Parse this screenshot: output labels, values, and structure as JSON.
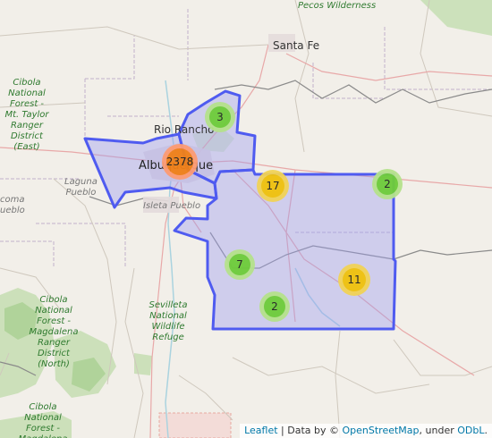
{
  "place_labels": [
    {
      "id": "santa-fe",
      "text": "Santa Fe",
      "style": "city"
    },
    {
      "id": "rio-rancho",
      "text": "Rio Rancho",
      "style": "city"
    },
    {
      "id": "albuquerque",
      "text": "Albuquerque",
      "style": "city-lg"
    },
    {
      "id": "laguna-pueblo",
      "text": "Laguna\nPueblo",
      "style": "pueblo"
    },
    {
      "id": "isleta-pueblo",
      "text": "Isleta Pueblo",
      "style": "pueblo"
    },
    {
      "id": "acoma-pueblo",
      "text": "coma\nueblo",
      "style": "pueblo"
    },
    {
      "id": "pecos-wilderness",
      "text": "Pecos Wilderness",
      "style": "green"
    },
    {
      "id": "cibola-east",
      "text": "Cibola\nNational\nForest -\nMt. Taylor\nRanger\nDistrict\n(East)",
      "style": "green"
    },
    {
      "id": "cibola-north",
      "text": "Cibola\nNational\nForest -\nMagdalena\nRanger\nDistrict\n(North)",
      "style": "green"
    },
    {
      "id": "sevilleta",
      "text": "Sevilleta\nNational\nWildlife\nRefuge",
      "style": "green"
    },
    {
      "id": "cibola-south",
      "text": "Cibola\nNational\nForest -\nMagdalena",
      "style": "green"
    }
  ],
  "clusters": [
    {
      "id": "c-3",
      "count": "3",
      "size": "small"
    },
    {
      "id": "c-2378",
      "count": "2378",
      "size": "large"
    },
    {
      "id": "c-17",
      "count": "17",
      "size": "medium"
    },
    {
      "id": "c-2-east",
      "count": "2",
      "size": "small"
    },
    {
      "id": "c-7",
      "count": "7",
      "size": "small"
    },
    {
      "id": "c-11",
      "count": "11",
      "size": "medium"
    },
    {
      "id": "c-2-south",
      "count": "2",
      "size": "small"
    }
  ],
  "cluster_colors": {
    "small": {
      "outer": "#b5e28c",
      "inner": "#6ecc39"
    },
    "medium": {
      "outer": "#f1d357",
      "inner": "#f0c20c"
    },
    "large": {
      "outer": "#fd9c73",
      "inner": "#f18017"
    }
  },
  "region_colors": {
    "stroke": "#4f5bf0",
    "fill": "#9c9cf0"
  },
  "attribution": {
    "leaflet": "Leaflet",
    "sep1": " | Data by © ",
    "osm": "OpenStreetMap",
    "sep2": ", under ",
    "odbl": "ODbL",
    "end": "."
  }
}
